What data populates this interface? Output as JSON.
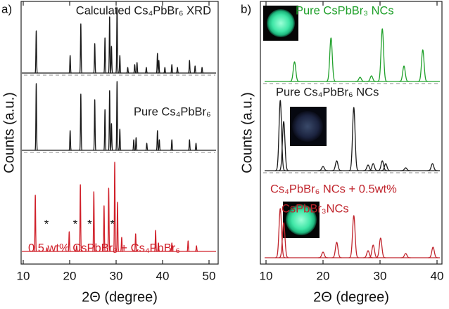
{
  "chart_data": [
    {
      "type": "xrd",
      "panel_label": "a)",
      "x_label": "2Θ (degree)",
      "y_label": "Counts (a.u.)",
      "xlim": [
        10,
        50
      ],
      "xticks": [
        10,
        20,
        30,
        40,
        50
      ],
      "series": [
        {
          "name": "Calculated Cs₄PbBr₆ XRD",
          "color": "#1a1a1a",
          "x": [
            12.8,
            20.1,
            22.4,
            25.4,
            27.6,
            28.6,
            29.0,
            30.2,
            30.8,
            32.5,
            34.0,
            34.5,
            36.5,
            38.9,
            39.2,
            40.5,
            42.0,
            43.2,
            45.8,
            47.0,
            48.5
          ],
          "values": [
            60,
            25,
            70,
            42,
            50,
            80,
            38,
            93,
            25,
            8,
            12,
            15,
            8,
            28,
            18,
            8,
            12,
            8,
            18,
            10,
            8
          ]
        },
        {
          "name": "Pure Cs₄PbBr₆",
          "color": "#1a1a1a",
          "x": [
            12.8,
            20.1,
            22.4,
            25.4,
            27.6,
            28.6,
            29.0,
            30.2,
            30.8,
            33.8,
            34.3,
            36.6,
            38.9,
            39.3,
            42.0,
            45.8,
            47.2
          ],
          "values": [
            95,
            28,
            80,
            72,
            58,
            85,
            38,
            98,
            30,
            15,
            18,
            10,
            28,
            15,
            15,
            15,
            10
          ]
        },
        {
          "name": "0.5 wt%  CsPbBr₃ + Cs₄PbBr₆",
          "color": "#d0202a",
          "x": [
            12.6,
            15.1,
            19.9,
            21.5,
            22.3,
            25.2,
            27.4,
            28.4,
            29.7,
            30.3,
            31.2,
            34.2,
            38.5,
            39.1,
            42.0,
            45.5,
            47.3
          ],
          "values": [
            80,
            5,
            28,
            8,
            95,
            85,
            65,
            90,
            127,
            70,
            20,
            25,
            30,
            12,
            12,
            15,
            8
          ]
        }
      ],
      "markers": [
        {
          "label": "*",
          "x": 15.0
        },
        {
          "label": "*",
          "x": 21.2
        },
        {
          "label": "*",
          "x": 24.3
        },
        {
          "label": "*",
          "x": 29.2
        }
      ]
    },
    {
      "type": "xrd",
      "panel_label": "b)",
      "x_label": "2Θ (degree)",
      "y_label": "Counts (a.u.)",
      "xlim": [
        10,
        40
      ],
      "xticks": [
        10,
        20,
        30,
        40
      ],
      "series": [
        {
          "name": "Pure CsPbBr₃ NCs",
          "color": "#1fa02a",
          "x": [
            15.0,
            21.4,
            26.5,
            28.5,
            30.4,
            34.2,
            37.5
          ],
          "values": [
            28,
            62,
            6,
            8,
            75,
            22,
            45
          ]
        },
        {
          "name": "Pure Cs₄PbBr₆ NCs",
          "color": "#1a1a1a",
          "x": [
            12.5,
            13.1,
            20.0,
            22.4,
            25.4,
            27.9,
            28.8,
            30.4,
            31.0,
            34.5,
            39.2
          ],
          "values": [
            100,
            70,
            6,
            14,
            90,
            8,
            10,
            14,
            10,
            4,
            10
          ]
        },
        {
          "name": [
            "Cs₄PbBr₆ NCs + 0.5wt%",
            "CsPbBr₃NCs"
          ],
          "color": "#c0242c",
          "x": [
            12.5,
            13.1,
            20.0,
            22.4,
            25.4,
            27.9,
            28.8,
            30.1,
            34.5,
            39.3
          ],
          "values": [
            70,
            50,
            8,
            22,
            60,
            10,
            18,
            28,
            6,
            15
          ]
        }
      ]
    }
  ]
}
